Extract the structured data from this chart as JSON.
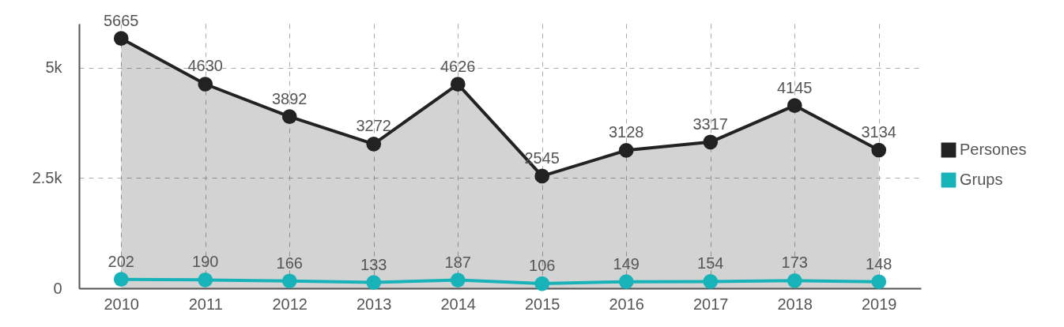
{
  "chart_data": {
    "type": "line",
    "categories": [
      "2010",
      "2011",
      "2012",
      "2013",
      "2014",
      "2015",
      "2016",
      "2017",
      "2018",
      "2019"
    ],
    "series": [
      {
        "name": "Persones",
        "type": "area",
        "color": "#222222",
        "values": [
          5665,
          4630,
          3892,
          3272,
          4626,
          2545,
          3128,
          3317,
          4145,
          3134
        ]
      },
      {
        "name": "Grups",
        "color": "#17b3b8",
        "values": [
          202,
          190,
          166,
          133,
          187,
          106,
          149,
          154,
          173,
          148
        ]
      }
    ],
    "ylim": [
      0,
      6000
    ],
    "yticks": [
      0,
      {
        "value": 2500,
        "label": "2.5k"
      },
      {
        "value": 5000,
        "label": "5k"
      }
    ],
    "grid": true,
    "legend": "right",
    "marker": "circle",
    "line_style": "solid",
    "data_labels": true
  }
}
